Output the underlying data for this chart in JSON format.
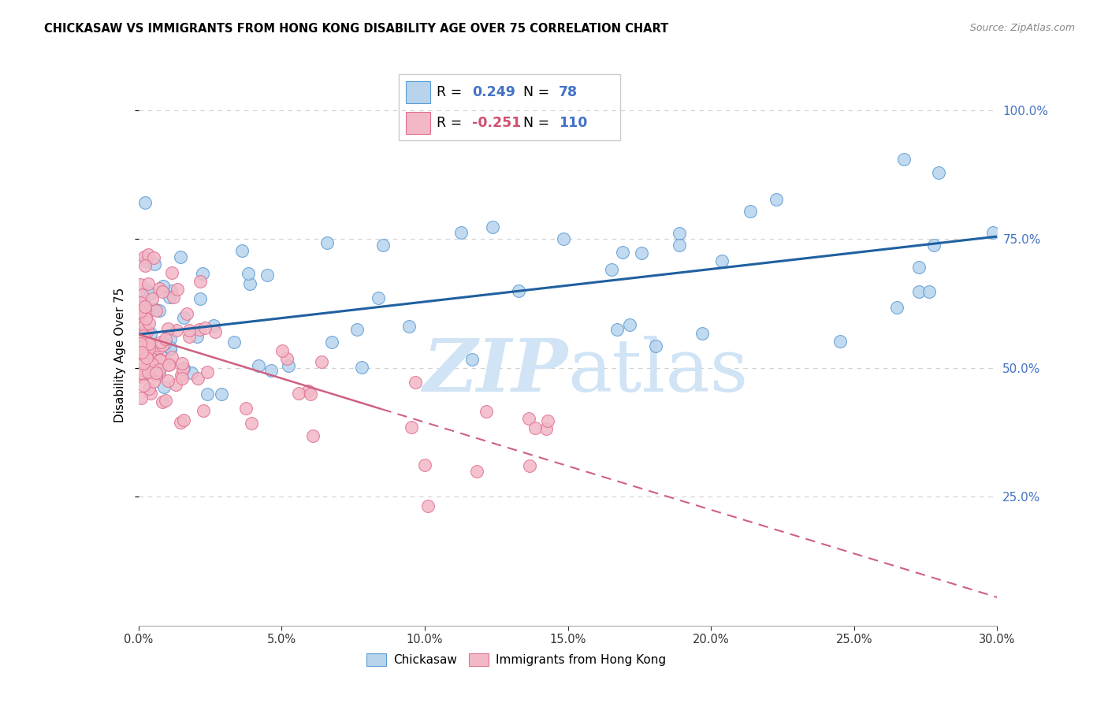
{
  "title": "CHICKASAW VS IMMIGRANTS FROM HONG KONG DISABILITY AGE OVER 75 CORRELATION CHART",
  "source": "Source: ZipAtlas.com",
  "ylabel": "Disability Age Over 75",
  "chickasaw_color": "#b8d4ed",
  "chickasaw_edge": "#5b9bd5",
  "hk_color": "#f2b8c6",
  "hk_edge": "#e07090",
  "trendline_blue": "#2060a0",
  "trendline_pink": "#d06080",
  "watermark_color": "#d0e4f5",
  "legend_blue_color": "#4472c4",
  "legend_pink_color": "#d05070",
  "right_tick_color": "#4472c4",
  "grid_color": "#d0d0d0",
  "x_min": 0.0,
  "x_max": 0.3,
  "y_min": 0.0,
  "y_max": 1.05,
  "blue_trend_y0": 0.565,
  "blue_trend_y1": 0.755,
  "pink_trend_solid_x0": 0.0,
  "pink_trend_solid_x1": 0.085,
  "pink_trend_y0": 0.565,
  "pink_trend_y1": 0.42,
  "pink_trend_dash_x0": 0.085,
  "pink_trend_dash_x1": 0.3,
  "pink_trend_dash_y0": 0.42,
  "pink_trend_dash_y1": 0.055,
  "seed_blue": 42,
  "seed_pink": 99
}
